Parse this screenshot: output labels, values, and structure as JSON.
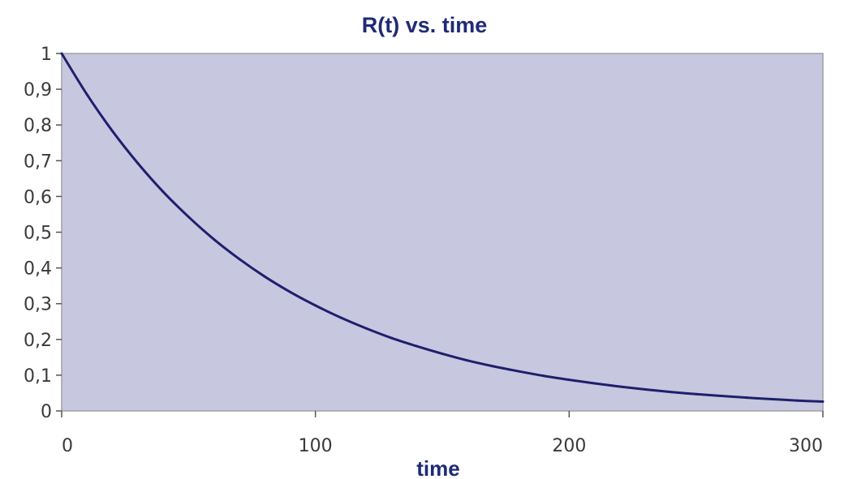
{
  "chart_data": {
    "type": "line",
    "title": "R(t) vs. time",
    "xlabel": "time",
    "ylabel": "",
    "xlim": [
      0,
      300
    ],
    "ylim": [
      0,
      1
    ],
    "x_ticks": [
      "0",
      "100",
      "200",
      "300"
    ],
    "y_ticks": [
      "0",
      "0,1",
      "0,2",
      "0,3",
      "0,4",
      "0,5",
      "0,6",
      "0,7",
      "0,8",
      "0,9",
      "1"
    ],
    "grid": false,
    "legend": "none",
    "series": [
      {
        "x": [
          0,
          10,
          20,
          30,
          40,
          50,
          60,
          70,
          80,
          90,
          100,
          110,
          120,
          130,
          140,
          150,
          160,
          170,
          180,
          190,
          200,
          210,
          220,
          230,
          240,
          250,
          260,
          270,
          280,
          290,
          300
        ],
        "values": [
          1.0,
          0.885,
          0.783,
          0.693,
          0.613,
          0.543,
          0.48,
          0.425,
          0.376,
          0.333,
          0.295,
          0.261,
          0.231,
          0.204,
          0.181,
          0.16,
          0.141,
          0.125,
          0.111,
          0.098,
          0.087,
          0.077,
          0.068,
          0.06,
          0.053,
          0.047,
          0.042,
          0.037,
          0.033,
          0.029,
          0.026
        ]
      }
    ],
    "colors": {
      "plot_background": "#c7c7df",
      "plot_border": "#a0a0a8",
      "line": "#1f1f6e",
      "text": "#1f2a78",
      "tick_text": "#3a3a3a"
    }
  }
}
